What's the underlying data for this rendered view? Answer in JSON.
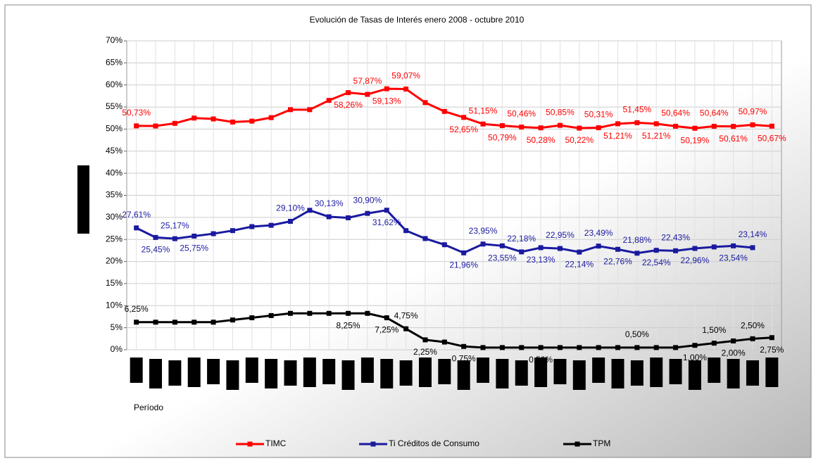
{
  "chart_data": {
    "type": "line",
    "title": "Evolución de Tasas de Interés enero 2008 - octubre 2010",
    "x_label": "Período",
    "categories": [
      null,
      null,
      null,
      null,
      null,
      null,
      null,
      null,
      null,
      null,
      null,
      null,
      null,
      null,
      null,
      null,
      null,
      null,
      null,
      null,
      null,
      null,
      null,
      null,
      null,
      null,
      null,
      null,
      null,
      null,
      null,
      null,
      null,
      null
    ],
    "ylim": [
      0,
      70
    ],
    "yticks": [
      {
        "value": 0,
        "label": "0%"
      },
      {
        "value": 5,
        "label": "5%"
      },
      {
        "value": 10,
        "label": "10%"
      },
      {
        "value": 15,
        "label": "15%"
      },
      {
        "value": 20,
        "label": "20%"
      },
      {
        "value": 25,
        "label": "25%"
      },
      {
        "value": 30,
        "label": "30%"
      },
      {
        "value": 35,
        "label": "35%"
      },
      {
        "value": 40,
        "label": "40%"
      },
      {
        "value": 45,
        "label": "45%"
      },
      {
        "value": 50,
        "label": "50%"
      },
      {
        "value": 55,
        "label": "55%"
      },
      {
        "value": 60,
        "label": "60%"
      },
      {
        "value": 65,
        "label": "65%"
      },
      {
        "value": 70,
        "label": "70%"
      }
    ],
    "grid": true,
    "legend": "bottom",
    "series": [
      {
        "name": "TIMC",
        "color": "#ff0000",
        "values": [
          50.73,
          50.7,
          51.3,
          52.5,
          52.3,
          51.6,
          51.8,
          52.6,
          54.4,
          54.4,
          56.5,
          58.26,
          57.87,
          59.13,
          59.07,
          56.0,
          54.0,
          52.65,
          51.15,
          50.79,
          50.46,
          50.28,
          50.85,
          50.22,
          50.31,
          51.21,
          51.45,
          51.21,
          50.64,
          50.19,
          50.64,
          50.61,
          50.97,
          50.67
        ],
        "value_labels": [
          "50,73%",
          null,
          null,
          null,
          null,
          null,
          null,
          null,
          null,
          null,
          null,
          "58,26%",
          "57,87%",
          "59,13%",
          "59,07%",
          null,
          null,
          "52,65%",
          "51,15%",
          "50,79%",
          "50,46%",
          "50,28%",
          "50,85%",
          "50,22%",
          "50,31%",
          "51,21%",
          "51,45%",
          "51,21%",
          "50,64%",
          "50,19%",
          "50,64%",
          "50,61%",
          "50,97%",
          "50,67%"
        ]
      },
      {
        "name": "Ti Créditos de Consumo",
        "color": "#1a1aa0",
        "values": [
          27.61,
          25.45,
          25.17,
          25.75,
          26.3,
          27.0,
          27.9,
          28.2,
          29.1,
          31.6,
          30.13,
          29.9,
          30.9,
          31.62,
          27.0,
          25.2,
          23.8,
          21.96,
          23.95,
          23.55,
          22.18,
          23.13,
          22.95,
          22.14,
          23.49,
          22.76,
          21.88,
          22.54,
          22.43,
          22.96,
          23.3,
          23.54,
          23.14,
          null
        ],
        "value_labels": [
          "27,61%",
          "25,45%",
          "25,17%",
          "25,75%",
          null,
          null,
          null,
          null,
          "29,10%",
          null,
          "30,13%",
          null,
          "30,90%",
          "31,62%",
          null,
          null,
          null,
          "21,96%",
          "23,95%",
          "23,55%",
          "22,18%",
          "23,13%",
          "22,95%",
          "22,14%",
          "23,49%",
          "22,76%",
          "21,88%",
          "22,54%",
          "22,43%",
          "22,96%",
          null,
          "23,54%",
          "23,14%",
          null
        ]
      },
      {
        "name": "TPM",
        "color": "#000000",
        "values": [
          6.25,
          6.25,
          6.25,
          6.25,
          6.25,
          6.75,
          7.25,
          7.75,
          8.25,
          8.25,
          8.25,
          8.25,
          8.25,
          7.25,
          4.75,
          2.25,
          1.75,
          0.75,
          0.5,
          0.5,
          0.5,
          0.5,
          0.5,
          0.5,
          0.5,
          0.5,
          0.5,
          0.5,
          0.5,
          1.0,
          1.5,
          2.0,
          2.5,
          2.75
        ],
        "value_labels": [
          "6,25%",
          null,
          null,
          null,
          null,
          null,
          null,
          null,
          null,
          null,
          null,
          "8,25%",
          null,
          "7,25%",
          "4,75%",
          "2,25%",
          null,
          "0,75%",
          null,
          null,
          null,
          "0,50%",
          null,
          null,
          null,
          null,
          "0,50%",
          null,
          null,
          "1,00%",
          "1,50%",
          "2,00%",
          "2,50%",
          "2,75%"
        ]
      }
    ]
  }
}
